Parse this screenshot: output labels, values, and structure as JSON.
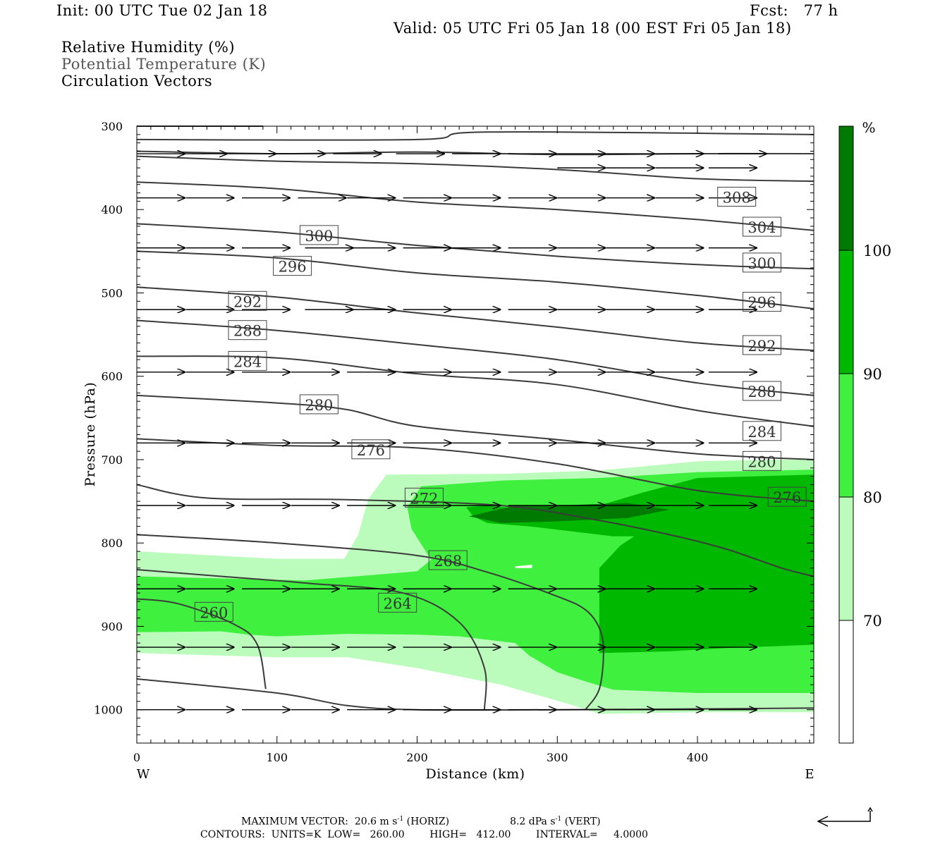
{
  "header": {
    "init": "Init: 00 UTC Tue 02 Jan 18",
    "fcst": "Fcst:   77 h",
    "valid": "Valid: 05 UTC Fri 05 Jan 18 (00 EST Fri 05 Jan 18)",
    "field_rh": "Relative Humidity (%)",
    "field_theta": "Potential Temperature (K)",
    "field_vectors": "Circulation Vectors"
  },
  "colors": {
    "rh_70_80": "#bbfbbb",
    "rh_80_90": "#3ff03f",
    "rh_90_100": "#00b800",
    "rh_100": "#007a00",
    "contour": "#3b3b3b",
    "vector": "#000000"
  },
  "chart_data": {
    "type": "contour",
    "xlabel": "Distance (km)",
    "ylabel": "Pressure (hPa)",
    "xlim": [
      0,
      483
    ],
    "ylim": [
      1040,
      300
    ],
    "yscale": "linear",
    "x_ticks": [
      "0",
      "100",
      "200",
      "300",
      "400"
    ],
    "x_tick_values": [
      0,
      100,
      200,
      300,
      400
    ],
    "y_ticks": [
      "300",
      "400",
      "500",
      "600",
      "700",
      "800",
      "900",
      "1000"
    ],
    "y_tick_values": [
      300,
      400,
      500,
      600,
      700,
      800,
      900,
      1000
    ],
    "west_label": "W",
    "east_label": "E",
    "colorbar": {
      "unit": "%",
      "levels": [
        "70",
        "80",
        "90",
        "100"
      ],
      "level_values": [
        70,
        80,
        90,
        100
      ]
    },
    "theta_contours": [
      {
        "label": "260",
        "points": [
          [
            0,
            867
          ],
          [
            30,
            873
          ],
          [
            70,
            898
          ],
          [
            86,
            922
          ],
          [
            92,
            975
          ]
        ]
      },
      {
        "label": "264",
        "points": [
          [
            0,
            832
          ],
          [
            60,
            840
          ],
          [
            120,
            848
          ],
          [
            190,
            860
          ],
          [
            230,
            895
          ],
          [
            248,
            950
          ],
          [
            248,
            1000
          ]
        ]
      },
      {
        "label": "268",
        "points": [
          [
            0,
            790
          ],
          [
            100,
            800
          ],
          [
            200,
            815
          ],
          [
            250,
            835
          ],
          [
            300,
            864
          ],
          [
            320,
            880
          ],
          [
            330,
            902
          ],
          [
            333,
            930
          ],
          [
            330,
            975
          ],
          [
            320,
            1000
          ]
        ]
      },
      {
        "label": "272",
        "points": [
          [
            0,
            730
          ],
          [
            50,
            746
          ],
          [
            150,
            748
          ],
          [
            260,
            755
          ],
          [
            330,
            773
          ],
          [
            380,
            790
          ],
          [
            420,
            807
          ],
          [
            460,
            830
          ],
          [
            483,
            840
          ]
        ]
      },
      {
        "label": "276",
        "points": [
          [
            0,
            675
          ],
          [
            100,
            683
          ],
          [
            200,
            686
          ],
          [
            300,
            705
          ],
          [
            400,
            737
          ],
          [
            483,
            750
          ]
        ]
      },
      {
        "label": "280",
        "points": [
          [
            0,
            623
          ],
          [
            100,
            632
          ],
          [
            150,
            640
          ],
          [
            200,
            660
          ],
          [
            300,
            676
          ],
          [
            400,
            693
          ],
          [
            483,
            700
          ]
        ]
      },
      {
        "label": "284",
        "points": [
          [
            0,
            576
          ],
          [
            100,
            578
          ],
          [
            200,
            597
          ],
          [
            300,
            610
          ],
          [
            400,
            641
          ],
          [
            483,
            660
          ]
        ]
      },
      {
        "label": "288",
        "points": [
          [
            0,
            533
          ],
          [
            100,
            545
          ],
          [
            200,
            562
          ],
          [
            300,
            580
          ],
          [
            400,
            608
          ],
          [
            483,
            623
          ]
        ]
      },
      {
        "label": "292",
        "points": [
          [
            0,
            493
          ],
          [
            100,
            505
          ],
          [
            200,
            524
          ],
          [
            300,
            541
          ],
          [
            400,
            560
          ],
          [
            483,
            569
          ]
        ]
      },
      {
        "label": "296",
        "points": [
          [
            0,
            450
          ],
          [
            100,
            458
          ],
          [
            200,
            476
          ],
          [
            300,
            487
          ],
          [
            400,
            503
          ],
          [
            483,
            519
          ]
        ]
      },
      {
        "label": "300",
        "points": [
          [
            0,
            417
          ],
          [
            100,
            427
          ],
          [
            200,
            443
          ],
          [
            300,
            456
          ],
          [
            400,
            466
          ],
          [
            483,
            471
          ]
        ]
      },
      {
        "label": "304",
        "points": [
          [
            0,
            367
          ],
          [
            100,
            375
          ],
          [
            200,
            391
          ],
          [
            300,
            400
          ],
          [
            400,
            412
          ],
          [
            483,
            425
          ]
        ]
      },
      {
        "label": "308",
        "points": [
          [
            0,
            336
          ],
          [
            100,
            342
          ],
          [
            200,
            345
          ],
          [
            300,
            352
          ],
          [
            400,
            363
          ],
          [
            483,
            366
          ]
        ]
      },
      {
        "label": "",
        "points": [
          [
            0,
            330
          ],
          [
            100,
            333
          ],
          [
            200,
            331
          ],
          [
            300,
            334
          ],
          [
            400,
            333
          ],
          [
            483,
            333
          ]
        ]
      },
      {
        "label": "",
        "points": [
          [
            0,
            316
          ],
          [
            200,
            316
          ],
          [
            250,
            307
          ],
          [
            483,
            310
          ]
        ]
      },
      {
        "label": "",
        "points": [
          [
            0,
            300
          ],
          [
            90,
            300
          ]
        ]
      },
      {
        "label": "",
        "points": [
          [
            0,
            963
          ],
          [
            100,
            980
          ],
          [
            150,
            995
          ],
          [
            200,
            1000
          ],
          [
            300,
            1000
          ],
          [
            400,
            999
          ],
          [
            483,
            998
          ]
        ]
      }
    ],
    "contour_labels": [
      {
        "text": "308",
        "x": 428,
        "p": 385
      },
      {
        "text": "304",
        "x": 446,
        "p": 421
      },
      {
        "text": "300",
        "x": 130,
        "p": 431
      },
      {
        "text": "300",
        "x": 446,
        "p": 464
      },
      {
        "text": "296",
        "x": 111,
        "p": 468
      },
      {
        "text": "296",
        "x": 446,
        "p": 511
      },
      {
        "text": "292",
        "x": 79,
        "p": 510
      },
      {
        "text": "292",
        "x": 446,
        "p": 563
      },
      {
        "text": "288",
        "x": 79,
        "p": 545
      },
      {
        "text": "288",
        "x": 446,
        "p": 618
      },
      {
        "text": "284",
        "x": 79,
        "p": 582
      },
      {
        "text": "284",
        "x": 446,
        "p": 666
      },
      {
        "text": "280",
        "x": 130,
        "p": 634
      },
      {
        "text": "280",
        "x": 446,
        "p": 702
      },
      {
        "text": "276",
        "x": 167,
        "p": 688
      },
      {
        "text": "276",
        "x": 464,
        "p": 745
      },
      {
        "text": "272",
        "x": 205,
        "p": 746
      },
      {
        "text": "268",
        "x": 222,
        "p": 821
      },
      {
        "text": "264",
        "x": 186,
        "p": 872
      },
      {
        "text": "260",
        "x": 55,
        "p": 883
      }
    ],
    "rh_regions": [
      {
        "level": "70-80",
        "points": [
          [
            0,
            810
          ],
          [
            100,
            819
          ],
          [
            148,
            819
          ],
          [
            158,
            790
          ],
          [
            165,
            748
          ],
          [
            178,
            718
          ],
          [
            262,
            717
          ],
          [
            330,
            713
          ],
          [
            400,
            702
          ],
          [
            450,
            700
          ],
          [
            483,
            700
          ],
          [
            483,
            1003
          ],
          [
            400,
            1003
          ],
          [
            330,
            1005
          ],
          [
            310,
            994
          ],
          [
            260,
            970
          ],
          [
            200,
            950
          ],
          [
            150,
            937
          ],
          [
            100,
            937
          ],
          [
            60,
            935
          ],
          [
            0,
            932
          ]
        ]
      },
      {
        "level": "80-90",
        "points": [
          [
            0,
            840
          ],
          [
            120,
            845
          ],
          [
            200,
            834
          ],
          [
            210,
            820
          ],
          [
            196,
            783
          ],
          [
            193,
            757
          ],
          [
            203,
            732
          ],
          [
            262,
            725
          ],
          [
            330,
            722
          ],
          [
            400,
            715
          ],
          [
            483,
            712
          ],
          [
            483,
            980
          ],
          [
            400,
            980
          ],
          [
            340,
            976
          ],
          [
            320,
            966
          ],
          [
            300,
            955
          ],
          [
            280,
            935
          ],
          [
            270,
            920
          ],
          [
            230,
            912
          ],
          [
            200,
            910
          ],
          [
            150,
            909
          ],
          [
            100,
            912
          ],
          [
            80,
            910
          ],
          [
            60,
            906
          ],
          [
            0,
            907
          ]
        ]
      },
      {
        "level": "90-100",
        "points": [
          [
            235,
            757
          ],
          [
            250,
            755
          ],
          [
            280,
            760
          ],
          [
            300,
            760
          ],
          [
            330,
            755
          ],
          [
            360,
            740
          ],
          [
            400,
            722
          ],
          [
            483,
            718
          ],
          [
            483,
            922
          ],
          [
            420,
            926
          ],
          [
            380,
            930
          ],
          [
            330,
            932
          ],
          [
            330,
            915
          ],
          [
            330,
            830
          ],
          [
            345,
            803
          ],
          [
            355,
            792
          ],
          [
            340,
            792
          ],
          [
            280,
            780
          ],
          [
            250,
            776
          ],
          [
            240,
            768
          ]
        ]
      },
      {
        "level": "100",
        "points": [
          [
            237,
            768
          ],
          [
            270,
            755
          ],
          [
            300,
            755
          ],
          [
            350,
            752
          ],
          [
            380,
            760
          ],
          [
            350,
            770
          ],
          [
            300,
            774
          ],
          [
            260,
            776
          ]
        ]
      },
      {
        "level": "gap",
        "points": [
          [
            270,
            828
          ],
          [
            282,
            826
          ],
          [
            282,
            830
          ],
          [
            270,
            830
          ]
        ]
      }
    ],
    "vectors_rows": [
      {
        "p": 333,
        "xs": [
          0,
          30,
          65,
          100,
          140,
          185,
          225,
          265,
          300,
          335,
          370,
          415,
          455
        ],
        "u": 35
      },
      {
        "p": 350,
        "xs": [
          300,
          335,
          370,
          408,
          450
        ],
        "u": 35
      },
      {
        "p": 386,
        "xs": [
          0,
          35,
          75,
          115,
          150,
          190,
          225,
          265,
          300,
          335,
          370,
          408,
          450
        ],
        "u": 35
      },
      {
        "p": 446,
        "xs": [
          0,
          35,
          75,
          120,
          150,
          190,
          225,
          265,
          300,
          335,
          370,
          408,
          450
        ],
        "u": 35
      },
      {
        "p": 520,
        "xs": [
          0,
          35,
          75,
          120,
          150,
          190,
          225,
          265,
          300,
          335,
          370,
          408,
          450
        ],
        "u": 35
      },
      {
        "p": 595,
        "xs": [
          0,
          35,
          75,
          110,
          150,
          190,
          225,
          265,
          300,
          335,
          370,
          408,
          450
        ],
        "u": 35
      },
      {
        "p": 680,
        "xs": [
          0,
          35,
          75,
          110,
          150,
          190,
          225,
          265,
          300,
          335,
          370,
          408,
          450
        ],
        "u": 35
      },
      {
        "p": 755,
        "xs": [
          0,
          35,
          75,
          110,
          150,
          190,
          225,
          265,
          300,
          335,
          370,
          408,
          450
        ],
        "u": 35
      },
      {
        "p": 855,
        "xs": [
          0,
          35,
          75,
          110,
          150,
          190,
          225,
          265,
          300,
          335,
          370,
          408,
          450
        ],
        "u": 35
      },
      {
        "p": 925,
        "xs": [
          0,
          35,
          75,
          110,
          150,
          190,
          225,
          265,
          300,
          335,
          370,
          408,
          450
        ],
        "u": 35
      },
      {
        "p": 1000,
        "xs": [
          0,
          35,
          75,
          110,
          150,
          190,
          225,
          265,
          300,
          335,
          370,
          408,
          450
        ],
        "u": 35
      }
    ]
  },
  "footer": {
    "max_vector_prefix": "MAXIMUM VECTOR:  20.6 m s",
    "max_vector_exp1": "-1",
    "max_vector_horiz": " (HORIZ)",
    "max_vector_mid": "8.2 dPa s",
    "max_vector_exp2": "-1",
    "max_vector_vert": " (VERT)",
    "contours_line": "CONTOURS:  UNITS=K  LOW=   260.00        HIGH=   412.00        INTERVAL=     4.0000"
  }
}
